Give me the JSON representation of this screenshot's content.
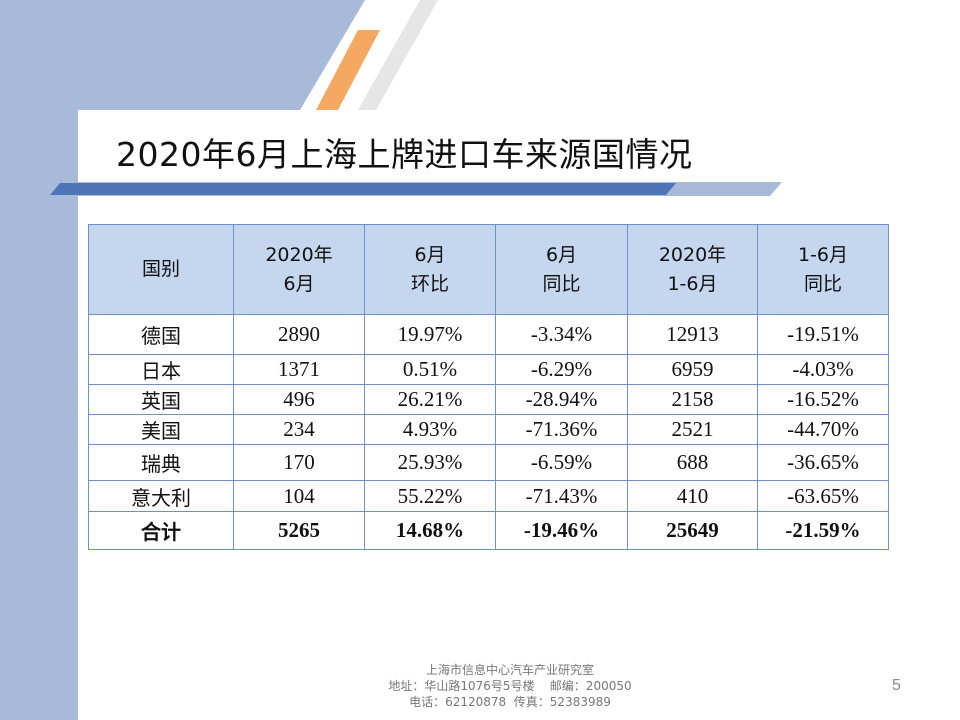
{
  "slide": {
    "title": "2020年6月上海上牌进口车来源国情况",
    "page_number": "5"
  },
  "table": {
    "headers": [
      [
        "国别"
      ],
      [
        "2020年",
        "6月"
      ],
      [
        "6月",
        "环比"
      ],
      [
        "6月",
        "同比"
      ],
      [
        "2020年",
        "1-6月"
      ],
      [
        "1-6月",
        "同比"
      ]
    ],
    "rows": [
      [
        "德国",
        "2890",
        "19.97%",
        "-3.34%",
        "12913",
        "-19.51%"
      ],
      [
        "日本",
        "1371",
        "0.51%",
        "-6.29%",
        "6959",
        "-4.03%"
      ],
      [
        "英国",
        "496",
        "26.21%",
        "-28.94%",
        "2158",
        "-16.52%"
      ],
      [
        "美国",
        "234",
        "4.93%",
        "-71.36%",
        "2521",
        "-44.70%"
      ],
      [
        "瑞典",
        "170",
        "25.93%",
        "-6.59%",
        "688",
        "-36.65%"
      ],
      [
        "意大利",
        "104",
        "55.22%",
        "-71.43%",
        "410",
        "-63.65%"
      ]
    ],
    "total": [
      "合计",
      "5265",
      "14.68%",
      "-19.46%",
      "25649",
      "-21.59%"
    ]
  },
  "footer": {
    "line1": "上海市信息中心汽车产业研究室",
    "line2": "地址：华山路1076号5号楼    邮编：200050",
    "line3": "电话：62120878  传真：52383989"
  },
  "colors": {
    "side_band": "#a8bad9",
    "header_fill": "#c5d6ef",
    "border": "#6f8fc6",
    "accent_orange": "#f5a861",
    "accent_bar_blue": "#4f74b8"
  }
}
